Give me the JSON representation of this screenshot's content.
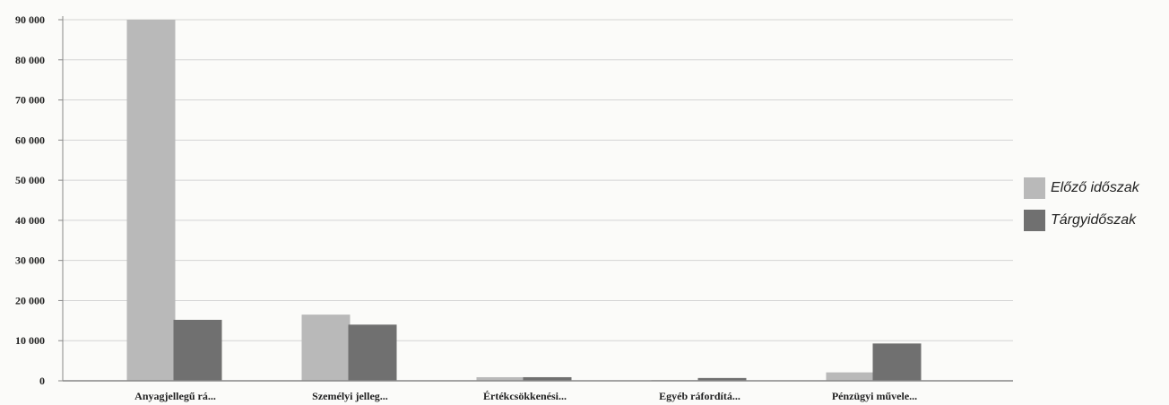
{
  "chart_data": {
    "type": "bar",
    "title": "",
    "xlabel": "",
    "ylabel": "",
    "categories": [
      "Anyagjellegű rá...",
      "Személyi jelleg...",
      "Értékcsökkenési...",
      "Egyéb ráfordítá...",
      "Pénzügyi művele..."
    ],
    "series": [
      {
        "name": "Előző időszak",
        "color": "#b9b9b9",
        "values": [
          90000,
          16500,
          900,
          200,
          2100
        ]
      },
      {
        "name": "Tárgyidőszak",
        "color": "#707070",
        "values": [
          15200,
          14000,
          900,
          700,
          9300
        ]
      }
    ],
    "y_ticks": [
      "0",
      "10 000",
      "20 000",
      "30 000",
      "40 000",
      "50 000",
      "60 000",
      "70 000",
      "80 000",
      "90 000"
    ],
    "ylim": [
      0,
      90000
    ],
    "grid": true,
    "legend_position": "right"
  }
}
